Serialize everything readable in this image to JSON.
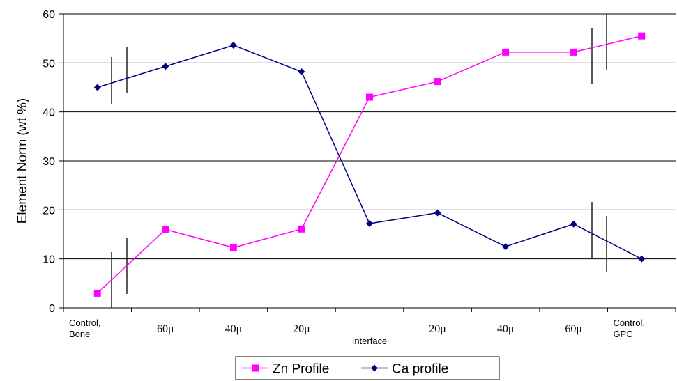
{
  "chart_data": {
    "type": "line",
    "ylabel": "Element Norm (wt %)",
    "ylim": [
      0,
      60
    ],
    "yticks": [
      0,
      10,
      20,
      30,
      40,
      50,
      60
    ],
    "grid": "horizontal",
    "legend_position": "bottom",
    "x_tick_labels": [
      {
        "lines": [
          "Control,",
          "Bone"
        ],
        "style": "small"
      },
      {
        "lines": [
          "60μ"
        ],
        "style": "serif"
      },
      {
        "lines": [
          "40μ"
        ],
        "style": "serif"
      },
      {
        "lines": [
          "20μ"
        ],
        "style": "serif"
      },
      {
        "lines": [
          "Interface"
        ],
        "style": "small"
      },
      {
        "lines": [
          "20μ"
        ],
        "style": "serif"
      },
      {
        "lines": [
          "40μ"
        ],
        "style": "serif"
      },
      {
        "lines": [
          "60μ"
        ],
        "style": "serif"
      },
      {
        "lines": [
          "Control,",
          "GPC"
        ],
        "style": "small"
      }
    ],
    "series": [
      {
        "name": "Zn Profile",
        "color": "#ff00ff",
        "marker": "square",
        "values": [
          3.0,
          16.0,
          12.3,
          16.1,
          43.0,
          46.2,
          52.2,
          52.2,
          55.5
        ]
      },
      {
        "name": "Ca profile",
        "color": "#000080",
        "marker": "diamond",
        "values": [
          45.0,
          49.3,
          53.6,
          48.2,
          17.2,
          19.4,
          12.5,
          17.1,
          10.0
        ]
      }
    ]
  }
}
